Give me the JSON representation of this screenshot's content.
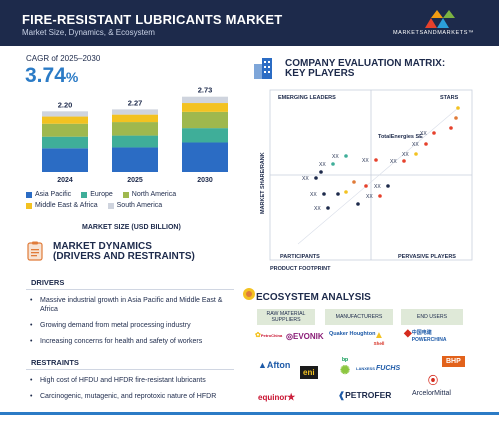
{
  "header": {
    "title": "FIRE-RESISTANT LUBRICANTS MARKET",
    "subtitle": "Market Size, Dynamics, & Ecosystem",
    "brand": "MARKETSANDMARKETS™"
  },
  "cagr": {
    "label": "CAGR of 2025–2030",
    "value": "3.74",
    "unit": "%"
  },
  "chart_data": {
    "type": "bar",
    "stacked": true,
    "categories": [
      "2024",
      "2025",
      "2030"
    ],
    "totals": [
      "2.20",
      "2.27",
      "2.73"
    ],
    "series": [
      {
        "name": "Asia Pacific",
        "color": "#2b6cc4",
        "values": [
          0.86,
          0.89,
          1.07
        ]
      },
      {
        "name": "Europe",
        "color": "#3fae99",
        "values": [
          0.42,
          0.43,
          0.52
        ]
      },
      {
        "name": "North America",
        "color": "#9fb84e",
        "values": [
          0.47,
          0.49,
          0.59
        ]
      },
      {
        "name": "Middle East & Africa",
        "color": "#f3c221",
        "values": [
          0.26,
          0.27,
          0.32
        ]
      },
      {
        "name": "South America",
        "color": "#cfd4de",
        "values": [
          0.19,
          0.19,
          0.23
        ]
      }
    ],
    "xlabel": "MARKET SIZE (USD BILLION)",
    "ylim": [
      0,
      2.9
    ]
  },
  "dynamics": {
    "title_line1": "MARKET DYNAMICS",
    "title_line2": "(DRIVERS AND RESTRAINTS)",
    "drivers_label": "DRIVERS",
    "drivers": [
      "Massive industrial growth in Asia Pacific and Middle East & Africa",
      "Growing demand from metal processing industry",
      "Increasing concerns for health and safety of workers"
    ],
    "restraints_label": "RESTRAINTS",
    "restraints": [
      "High cost of HFDU and HFDR fire-resistant lubricants",
      "Carcinogenic, mutagenic, and reprotoxic nature of HFDR"
    ]
  },
  "matrix": {
    "title_line1": "COMPANY EVALUATION MATRIX:",
    "title_line2": "KEY PLAYERS",
    "quadrants": {
      "top_left": "EMERGING LEADERS",
      "top_right": "STARS",
      "bottom_left": "PARTICIPANTS",
      "bottom_right": "PERVASIVE PLAYERS"
    },
    "y_axis": "MARKET SHARE/RANK",
    "x_axis": "PRODUCT FOOTPRINT",
    "top_company": "TotalEnergies SE",
    "point_label": "XX"
  },
  "ecosystem": {
    "title": "ECOSYSTEM ANALYSIS",
    "columns": [
      "RAW MATERIAL SUPPLIERS",
      "MANUFACTURERS",
      "END USERS"
    ],
    "logos": {
      "petrochina": "PetroChina",
      "evonik": "EVONIK",
      "quaker": "Quaker Houghton",
      "shell": "Shell",
      "powerchina": "POWERCHINA",
      "powerchina_cn": "中国电建",
      "afton": "Afton",
      "eni": "eni",
      "bp": "bp",
      "lanxess": "LANXESS",
      "fuchs": "FUCHS",
      "bhp": "BHP",
      "equinor": "equinor",
      "petrofer": "PETROFER",
      "arcelormittal": "ArcelorMittal"
    }
  }
}
